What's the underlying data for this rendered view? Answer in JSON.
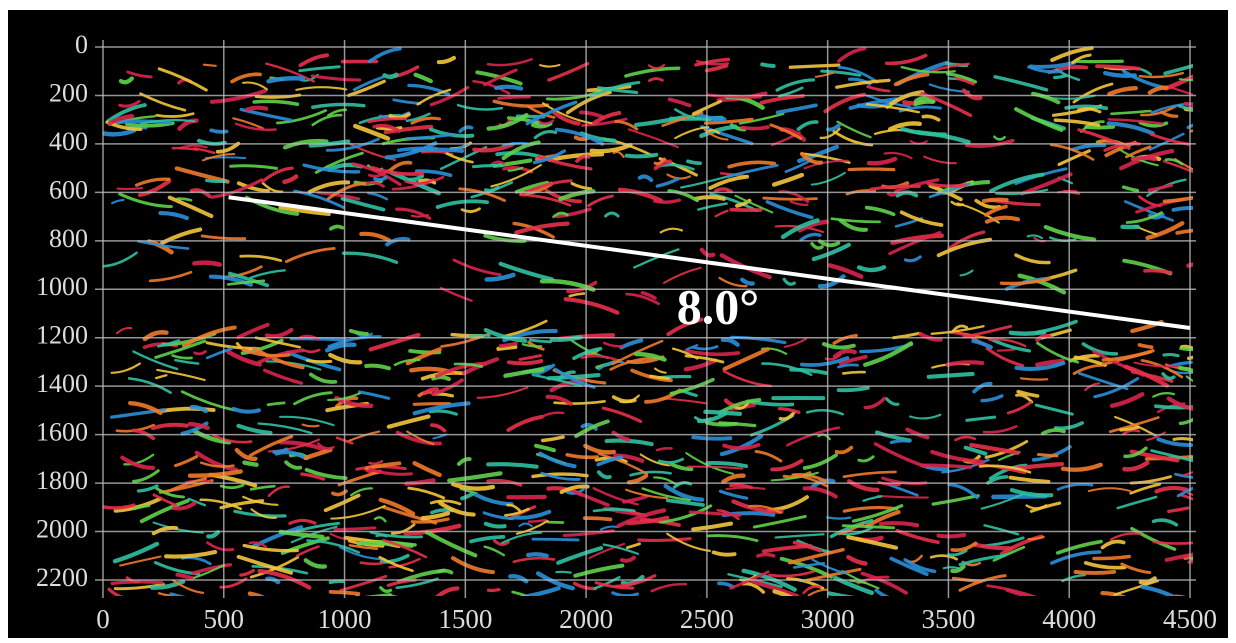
{
  "chart_data": {
    "type": "line",
    "x": [
      520,
      4500
    ],
    "series": [
      {
        "color": "#ffffff",
        "values": [
          620,
          1160
        ]
      }
    ],
    "annotations": [
      {
        "text": "8.0°",
        "x": 2546,
        "y": 1094
      }
    ],
    "xlim": [
      0,
      4500
    ],
    "xticks": [
      0,
      500,
      1000,
      1500,
      2000,
      2500,
      3000,
      3500,
      4000,
      4500
    ],
    "ylim": [
      0,
      2200
    ],
    "yticks": [
      0,
      200,
      400,
      600,
      800,
      1000,
      1200,
      1400,
      1600,
      1800,
      2000,
      2200
    ],
    "y_inverted": true,
    "grid": true,
    "background": "#000000"
  }
}
